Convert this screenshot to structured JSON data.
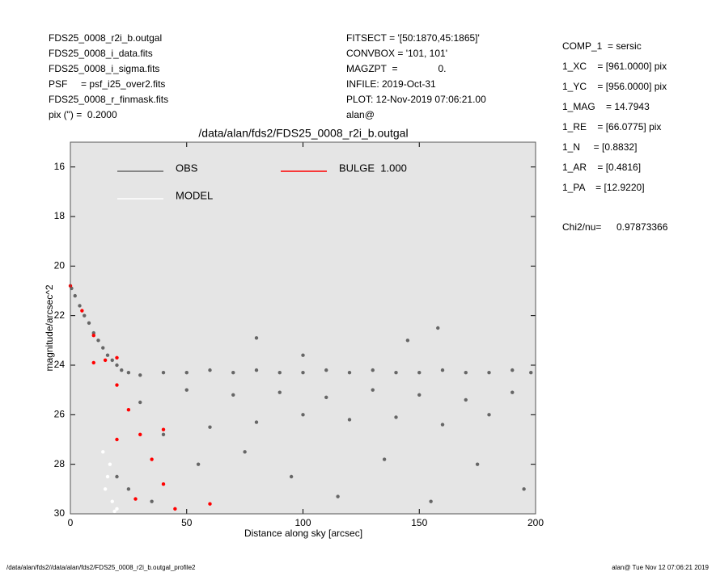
{
  "header": {
    "left": [
      "FDS25_0008_r2i_b.outgal",
      "FDS25_0008_i_data.fits",
      "FDS25_0008_i_sigma.fits",
      "PSF     = psf_i25_over2.fits",
      "FDS25_0008_r_finmask.fits",
      "pix (\") =  0.2000"
    ],
    "middle": [
      "FITSECT = '[50:1870,45:1865]'",
      "CONVBOX = '101, 101'",
      "MAGZPT  =               0.",
      "INFILE: 2019-Oct-31",
      "PLOT: 12-Nov-2019 07:06:21.00",
      "alan@"
    ],
    "right": [
      "COMP_1  = sersic",
      "1_XC    = [961.0000] pix",
      "1_YC    = [956.0000] pix",
      "1_MAG    = 14.7943",
      "1_RE    = [66.0775] pix",
      "1_N     = [0.8832]",
      "1_AR    = [0.4816]",
      "1_PA    = [12.9220]"
    ],
    "chi2_label": "Chi2/nu=",
    "chi2_value": "0.97873366"
  },
  "footer": {
    "left": "/data/alan/fds2//data/alan/fds2/FDS25_0008_r2i_b.outgal_profile2",
    "right": "alan@   Tue Nov 12 07:06:21 2019"
  },
  "chart_data": {
    "type": "scatter",
    "title": "/data/alan/fds2/FDS25_0008_r2i_b.outgal",
    "x_label": "Distance along sky [arcsec]",
    "y_label": "magnitude/arcsec^2",
    "xlim": [
      0,
      200
    ],
    "ylim": [
      30,
      15
    ],
    "xticks": [
      0,
      50,
      100,
      150,
      200
    ],
    "yticks": [
      16,
      18,
      20,
      22,
      24,
      26,
      28,
      30
    ],
    "background": "#e5e5e5",
    "series": [
      {
        "name": "OBS",
        "color": "#666666",
        "x": [
          0.5,
          2,
          4,
          6,
          8,
          10,
          12,
          14,
          16,
          18,
          20,
          22,
          25,
          30,
          40,
          50,
          60,
          70,
          80,
          90,
          100,
          110,
          120,
          130,
          140,
          150,
          160,
          170,
          180,
          190,
          198,
          30,
          50,
          70,
          90,
          110,
          130,
          150,
          170,
          190,
          40,
          60,
          80,
          100,
          120,
          140,
          160,
          180,
          20,
          25,
          35,
          55,
          75,
          95,
          115,
          135,
          155,
          175,
          195,
          80,
          100,
          145,
          158
        ],
        "values": [
          20.9,
          21.2,
          21.6,
          22.0,
          22.3,
          22.7,
          23.0,
          23.3,
          23.6,
          23.8,
          24.0,
          24.2,
          24.3,
          24.4,
          24.3,
          24.3,
          24.2,
          24.3,
          24.2,
          24.3,
          24.3,
          24.2,
          24.3,
          24.2,
          24.3,
          24.3,
          24.2,
          24.3,
          24.3,
          24.2,
          24.3,
          25.5,
          25.0,
          25.2,
          25.1,
          25.3,
          25.0,
          25.2,
          25.4,
          25.1,
          26.8,
          26.5,
          26.3,
          26.0,
          26.2,
          26.1,
          26.4,
          26.0,
          28.5,
          29.0,
          29.5,
          28.0,
          27.5,
          28.5,
          29.3,
          27.8,
          29.5,
          28.0,
          29.0,
          22.9,
          23.6,
          23.0,
          22.5
        ]
      },
      {
        "name": "BULGE  1.000",
        "color": "#ff0000",
        "x": [
          0,
          5,
          10,
          15,
          20,
          25,
          30,
          35,
          40,
          45,
          20,
          40,
          60,
          10,
          20,
          28
        ],
        "values": [
          20.8,
          21.8,
          22.8,
          23.8,
          24.8,
          25.8,
          26.8,
          27.8,
          28.8,
          29.8,
          23.7,
          26.6,
          29.6,
          23.9,
          27.0,
          29.4
        ]
      },
      {
        "name": "MODEL",
        "color": "#ffffff",
        "x": [
          14,
          16,
          18,
          17,
          15,
          19,
          20
        ],
        "values": [
          27.5,
          28.5,
          29.5,
          28.0,
          29.0,
          29.9,
          29.8
        ]
      }
    ]
  }
}
